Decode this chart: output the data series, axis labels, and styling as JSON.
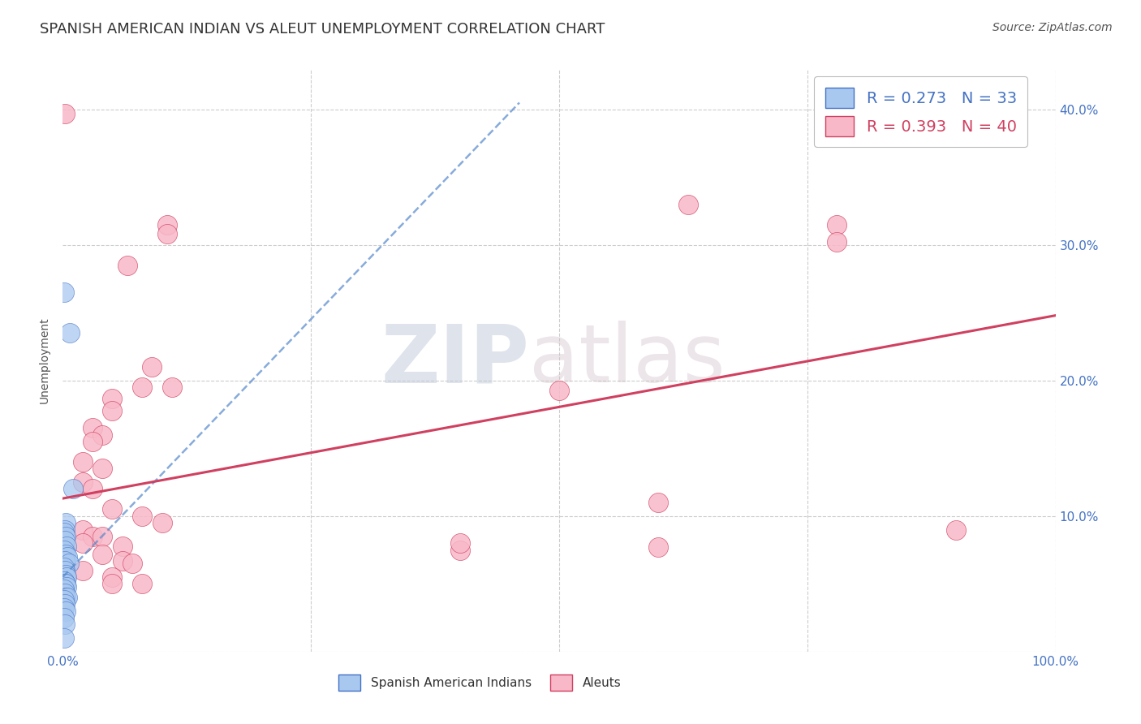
{
  "title": "SPANISH AMERICAN INDIAN VS ALEUT UNEMPLOYMENT CORRELATION CHART",
  "source": "Source: ZipAtlas.com",
  "ylabel": "Unemployment",
  "xlim": [
    0.0,
    1.0
  ],
  "ylim": [
    0.0,
    0.43
  ],
  "xticks": [
    0.0,
    0.25,
    0.5,
    0.75,
    1.0
  ],
  "xticklabels": [
    "0.0%",
    "",
    "",
    "",
    "100.0%"
  ],
  "yticks": [
    0.0,
    0.1,
    0.2,
    0.3,
    0.4
  ],
  "yticklabels": [
    "",
    "10.0%",
    "20.0%",
    "30.0%",
    "40.0%"
  ],
  "legend_r_blue": "R = 0.273",
  "legend_n_blue": "N = 33",
  "legend_r_pink": "R = 0.393",
  "legend_n_pink": "N = 40",
  "watermark_zip": "ZIP",
  "watermark_atlas": "atlas",
  "blue_scatter": [
    [
      0.001,
      0.265
    ],
    [
      0.007,
      0.235
    ],
    [
      0.01,
      0.12
    ],
    [
      0.003,
      0.095
    ],
    [
      0.002,
      0.09
    ],
    [
      0.001,
      0.088
    ],
    [
      0.003,
      0.085
    ],
    [
      0.002,
      0.082
    ],
    [
      0.004,
      0.078
    ],
    [
      0.001,
      0.075
    ],
    [
      0.003,
      0.072
    ],
    [
      0.005,
      0.07
    ],
    [
      0.002,
      0.067
    ],
    [
      0.006,
      0.065
    ],
    [
      0.001,
      0.062
    ],
    [
      0.002,
      0.06
    ],
    [
      0.003,
      0.057
    ],
    [
      0.004,
      0.055
    ],
    [
      0.001,
      0.052
    ],
    [
      0.002,
      0.05
    ],
    [
      0.003,
      0.05
    ],
    [
      0.004,
      0.048
    ],
    [
      0.001,
      0.046
    ],
    [
      0.002,
      0.043
    ],
    [
      0.003,
      0.04
    ],
    [
      0.005,
      0.04
    ],
    [
      0.001,
      0.038
    ],
    [
      0.002,
      0.035
    ],
    [
      0.001,
      0.032
    ],
    [
      0.003,
      0.03
    ],
    [
      0.001,
      0.025
    ],
    [
      0.002,
      0.02
    ],
    [
      0.001,
      0.01
    ]
  ],
  "pink_scatter": [
    [
      0.002,
      0.397
    ],
    [
      0.065,
      0.285
    ],
    [
      0.105,
      0.315
    ],
    [
      0.105,
      0.308
    ],
    [
      0.63,
      0.33
    ],
    [
      0.78,
      0.315
    ],
    [
      0.78,
      0.302
    ],
    [
      0.09,
      0.21
    ],
    [
      0.08,
      0.195
    ],
    [
      0.11,
      0.195
    ],
    [
      0.05,
      0.187
    ],
    [
      0.05,
      0.178
    ],
    [
      0.03,
      0.165
    ],
    [
      0.04,
      0.16
    ],
    [
      0.03,
      0.155
    ],
    [
      0.02,
      0.14
    ],
    [
      0.04,
      0.135
    ],
    [
      0.02,
      0.125
    ],
    [
      0.03,
      0.12
    ],
    [
      0.5,
      0.193
    ],
    [
      0.05,
      0.105
    ],
    [
      0.08,
      0.1
    ],
    [
      0.1,
      0.095
    ],
    [
      0.02,
      0.09
    ],
    [
      0.03,
      0.085
    ],
    [
      0.04,
      0.085
    ],
    [
      0.02,
      0.08
    ],
    [
      0.06,
      0.078
    ],
    [
      0.04,
      0.072
    ],
    [
      0.06,
      0.067
    ],
    [
      0.07,
      0.065
    ],
    [
      0.02,
      0.06
    ],
    [
      0.05,
      0.055
    ],
    [
      0.05,
      0.05
    ],
    [
      0.08,
      0.05
    ],
    [
      0.6,
      0.11
    ],
    [
      0.4,
      0.075
    ],
    [
      0.4,
      0.08
    ],
    [
      0.6,
      0.077
    ],
    [
      0.9,
      0.09
    ]
  ],
  "blue_line_x": [
    0.0,
    0.46
  ],
  "blue_line_y": [
    0.055,
    0.405
  ],
  "pink_line_x": [
    0.0,
    1.0
  ],
  "pink_line_y": [
    0.113,
    0.248
  ],
  "blue_scatter_color": "#A8C8F0",
  "blue_scatter_edge": "#4472C4",
  "pink_scatter_color": "#F8B8C8",
  "pink_scatter_edge": "#D04060",
  "blue_line_color": "#5588CC",
  "pink_line_color": "#D04060",
  "grid_color": "#CCCCCC",
  "background_color": "#FFFFFF",
  "title_fontsize": 13,
  "axis_label_fontsize": 10,
  "tick_fontsize": 11,
  "legend_fontsize": 14,
  "source_fontsize": 10
}
